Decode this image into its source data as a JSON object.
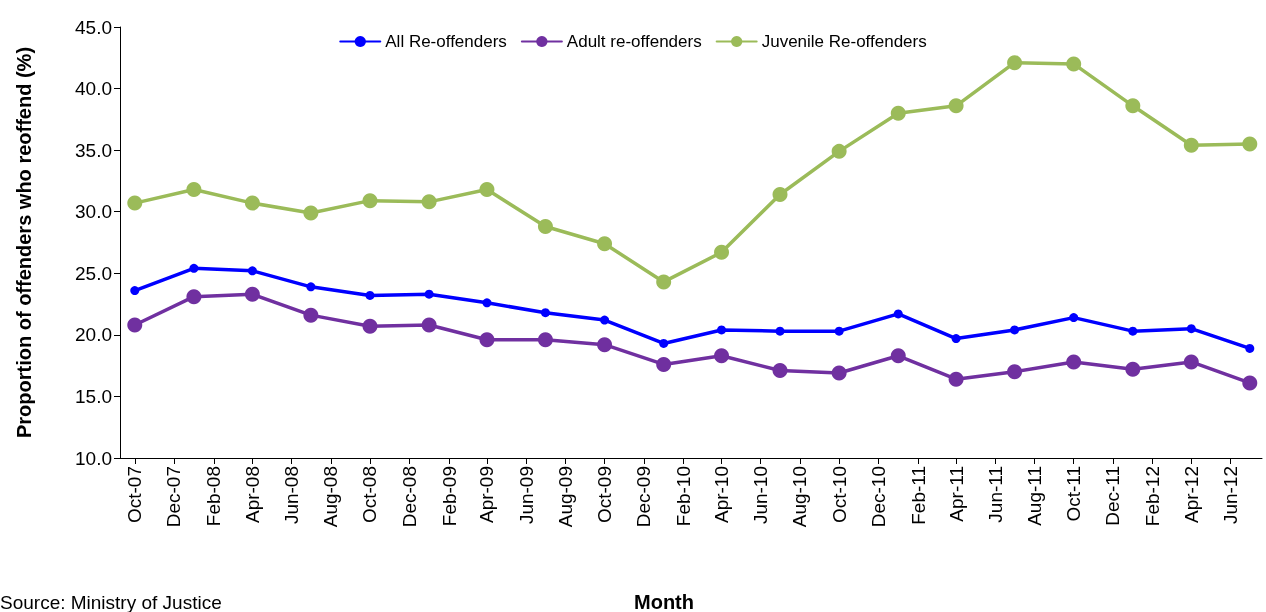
{
  "chart_data": {
    "type": "line",
    "xlabel": "Month",
    "ylabel": "Proportion of offenders who reoffend (%)",
    "annotations": [
      "Source: Ministry of Justice"
    ],
    "x": [
      "2007-10",
      "2008-01",
      "2008-04",
      "2008-07",
      "2008-10",
      "2009-01",
      "2009-04",
      "2009-07",
      "2009-10",
      "2010-01",
      "2010-04",
      "2010-07",
      "2010-10",
      "2011-01",
      "2011-04",
      "2011-07",
      "2011-10",
      "2012-01",
      "2012-04",
      "2012-07"
    ],
    "series": [
      {
        "name": "All Re-offenders",
        "color": "#0000ff",
        "values": [
          23.6,
          25.4,
          25.2,
          23.9,
          23.2,
          23.3,
          22.6,
          21.8,
          21.2,
          19.3,
          20.4,
          20.3,
          20.3,
          21.7,
          19.7,
          20.4,
          21.4,
          20.3,
          20.5,
          18.9
        ]
      },
      {
        "name": "Adult re-offenders",
        "color": "#7030a0",
        "values": [
          20.8,
          23.1,
          23.3,
          21.6,
          20.7,
          20.8,
          19.6,
          19.6,
          19.2,
          17.6,
          18.3,
          17.1,
          16.9,
          18.3,
          16.4,
          17.0,
          17.8,
          17.2,
          17.8,
          16.1
        ]
      },
      {
        "name": "Juvenile Re-offenders",
        "color": "#9bbb59",
        "values": [
          30.7,
          31.8,
          30.7,
          29.9,
          30.9,
          30.8,
          31.8,
          28.8,
          27.4,
          24.3,
          26.7,
          31.4,
          34.9,
          38.0,
          38.6,
          42.1,
          42.0,
          38.6,
          35.4,
          35.5
        ]
      }
    ],
    "xlim": [
      "2007-09-08",
      "2012-07-20"
    ],
    "xticks": [
      {
        "value": "2007-10",
        "label": "Oct-07"
      },
      {
        "value": "2007-12",
        "label": "Dec-07"
      },
      {
        "value": "2008-02",
        "label": "Feb-08"
      },
      {
        "value": "2008-04",
        "label": "Apr-08"
      },
      {
        "value": "2008-06",
        "label": "Jun-08"
      },
      {
        "value": "2008-08",
        "label": "Aug-08"
      },
      {
        "value": "2008-10",
        "label": "Oct-08"
      },
      {
        "value": "2008-12",
        "label": "Dec-08"
      },
      {
        "value": "2009-02",
        "label": "Feb-09"
      },
      {
        "value": "2009-04",
        "label": "Apr-09"
      },
      {
        "value": "2009-06",
        "label": "Jun-09"
      },
      {
        "value": "2009-08",
        "label": "Aug-09"
      },
      {
        "value": "2009-10",
        "label": "Oct-09"
      },
      {
        "value": "2009-12",
        "label": "Dec-09"
      },
      {
        "value": "2010-02",
        "label": "Feb-10"
      },
      {
        "value": "2010-04",
        "label": "Apr-10"
      },
      {
        "value": "2010-06",
        "label": "Jun-10"
      },
      {
        "value": "2010-08",
        "label": "Aug-10"
      },
      {
        "value": "2010-10",
        "label": "Oct-10"
      },
      {
        "value": "2010-12",
        "label": "Dec-10"
      },
      {
        "value": "2011-02",
        "label": "Feb-11"
      },
      {
        "value": "2011-04",
        "label": "Apr-11"
      },
      {
        "value": "2011-06",
        "label": "Jun-11"
      },
      {
        "value": "2011-08",
        "label": "Aug-11"
      },
      {
        "value": "2011-10",
        "label": "Oct-11"
      },
      {
        "value": "2011-12",
        "label": "Dec-11"
      },
      {
        "value": "2012-02",
        "label": "Feb-12"
      },
      {
        "value": "2012-04",
        "label": "Apr-12"
      },
      {
        "value": "2012-06",
        "label": "Jun-12"
      }
    ],
    "ylim": [
      10,
      45
    ],
    "yticks": [
      {
        "value": 10,
        "label": "10.0"
      },
      {
        "value": 15,
        "label": "15.0"
      },
      {
        "value": 20,
        "label": "20.0"
      },
      {
        "value": 25,
        "label": "25.0"
      },
      {
        "value": 30,
        "label": "30.0"
      },
      {
        "value": 35,
        "label": "35.0"
      },
      {
        "value": 40,
        "label": "40.0"
      },
      {
        "value": 45,
        "label": "45.0"
      }
    ],
    "grid": false,
    "legend": "top",
    "marker": "circle",
    "line_style": "solid"
  }
}
